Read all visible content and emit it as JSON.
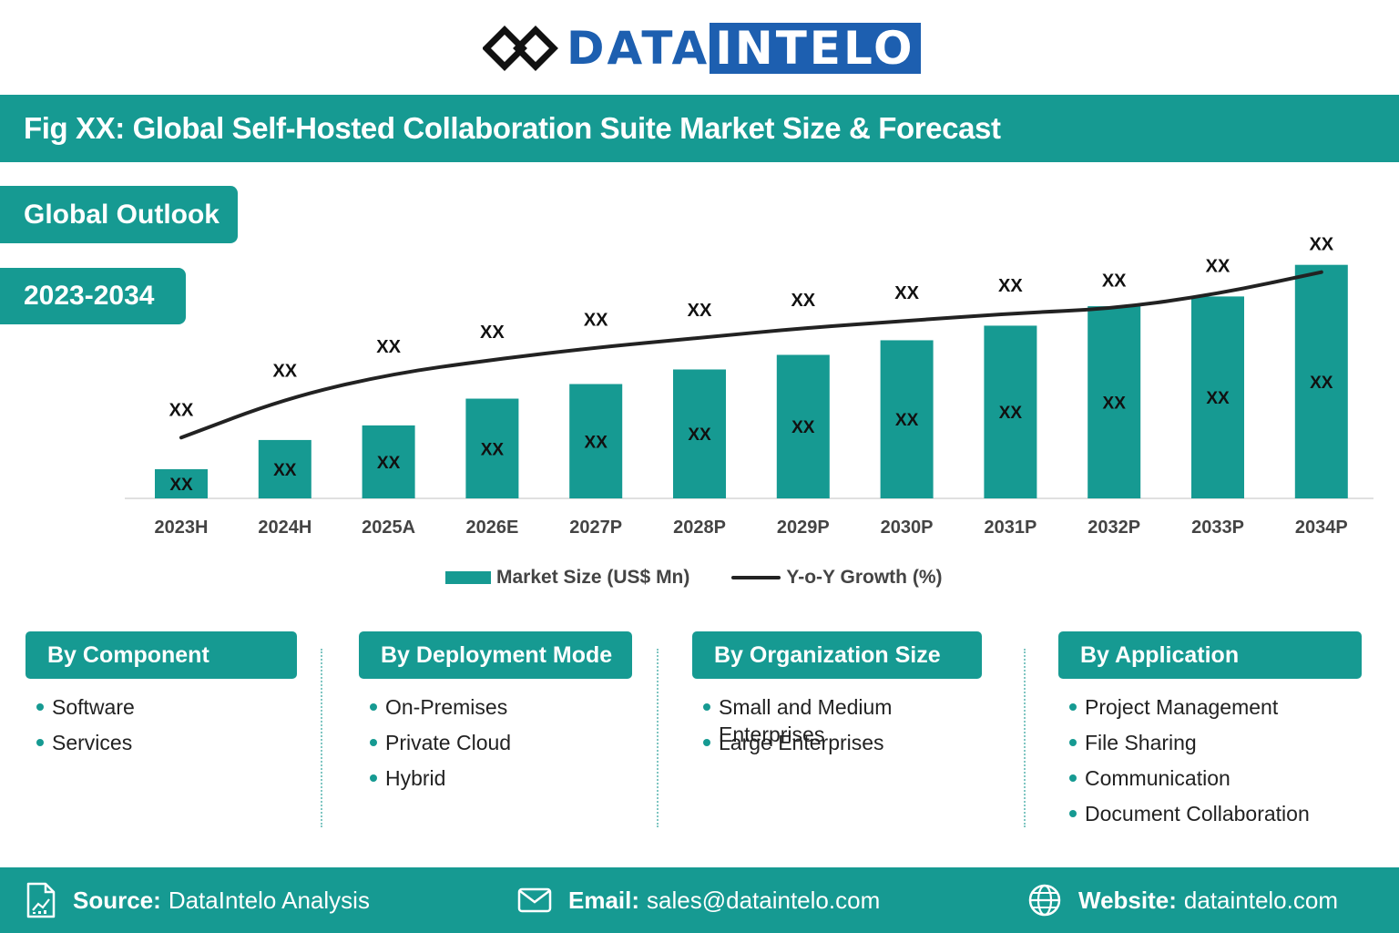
{
  "logo": {
    "part1": "DATA",
    "part2": "INTELO"
  },
  "title": "Fig XX: Global Self-Hosted Collaboration Suite Market Size & Forecast",
  "outlook_label": "Global Outlook",
  "period_label": "2023-2034",
  "colors": {
    "accent": "#169a92",
    "brand_blue": "#1d5fb0",
    "line": "#222222"
  },
  "chart_data": {
    "type": "bar+line",
    "categories": [
      "2023H",
      "2024H",
      "2025A",
      "2026E",
      "2027P",
      "2028P",
      "2029P",
      "2030P",
      "2031P",
      "2032P",
      "2033P",
      "2034P"
    ],
    "series": [
      {
        "name": "Market Size (US$ Mn)",
        "type": "bar",
        "values": [
          1.2,
          2.4,
          3.0,
          4.1,
          4.7,
          5.3,
          5.9,
          6.5,
          7.1,
          7.9,
          8.3,
          9.6
        ],
        "labels": [
          "XX",
          "XX",
          "XX",
          "XX",
          "XX",
          "XX",
          "XX",
          "XX",
          "XX",
          "XX",
          "XX",
          "XX"
        ]
      },
      {
        "name": "Y-o-Y Growth (%)",
        "type": "line",
        "values": [
          2.5,
          4.1,
          5.1,
          5.7,
          6.2,
          6.6,
          7.0,
          7.3,
          7.6,
          7.8,
          8.4,
          9.3
        ],
        "labels": [
          "XX",
          "XX",
          "XX",
          "XX",
          "XX",
          "XX",
          "XX",
          "XX",
          "XX",
          "XX",
          "XX",
          "XX"
        ]
      }
    ],
    "ylim": [
      0,
      10
    ],
    "grid": false,
    "legend_position": "bottom"
  },
  "segments": [
    {
      "title": "By Component",
      "items": [
        "Software",
        "Services"
      ]
    },
    {
      "title": "By Deployment Mode",
      "items": [
        "On-Premises",
        "Private Cloud",
        "Hybrid"
      ]
    },
    {
      "title": "By Organization Size",
      "items": [
        "Small and Medium Enterprises",
        "Large Enterprises"
      ]
    },
    {
      "title": "By Application",
      "items": [
        "Project Management",
        "File Sharing",
        "Communication",
        "Document Collaboration"
      ]
    }
  ],
  "footer": {
    "source_label": "Source:",
    "source_value": "DataIntelo Analysis",
    "email_label": "Email:",
    "email_value": "sales@dataintelo.com",
    "website_label": "Website:",
    "website_value": "dataintelo.com",
    "icons": [
      "report-icon",
      "envelope-icon",
      "globe-icon"
    ]
  }
}
